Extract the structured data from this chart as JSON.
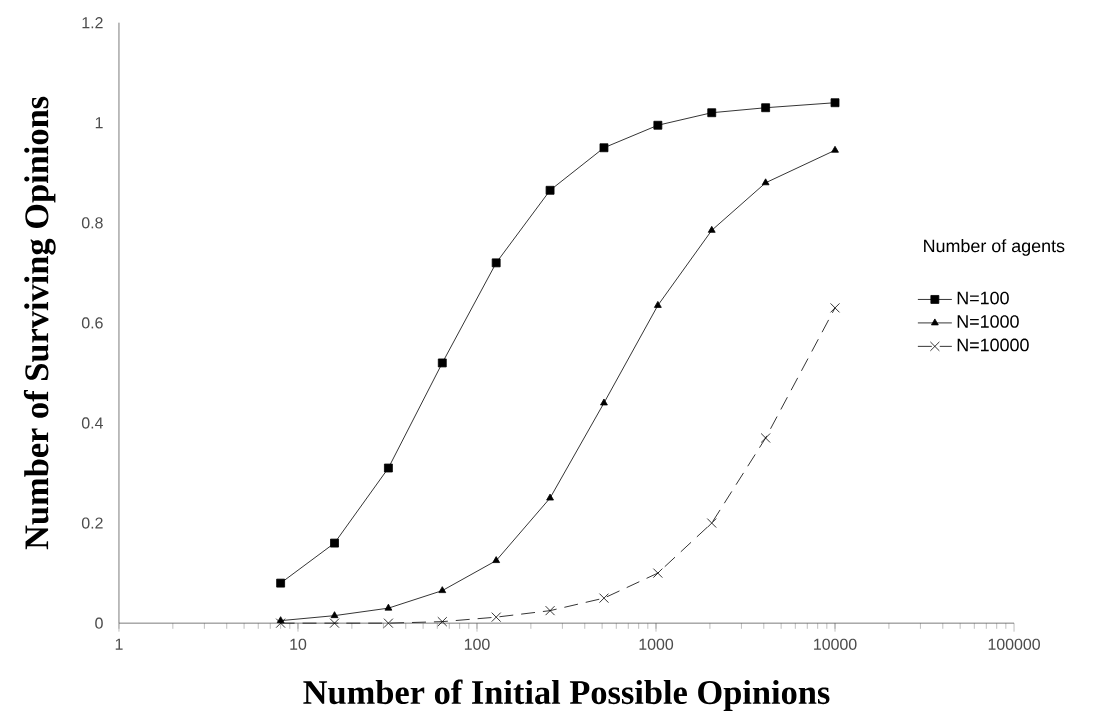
{
  "chart_data": {
    "type": "line",
    "xlabel": "Number of Initial Possible Opinions",
    "ylabel": "Number of Surviving Opinions",
    "legend_title": "Number of agents",
    "x": [
      8,
      16,
      32,
      64,
      128,
      256,
      512,
      1024,
      2048,
      4096,
      10000
    ],
    "series": [
      {
        "name": "N=100",
        "color": "#000000",
        "marker": "square",
        "line_style": "solid",
        "values": [
          0.08,
          0.16,
          0.31,
          0.52,
          0.72,
          0.865,
          0.95,
          0.995,
          1.02,
          1.03,
          1.04
        ]
      },
      {
        "name": "N=1000",
        "color": "#000000",
        "marker": "triangle",
        "line_style": "solid",
        "values": [
          0.005,
          0.015,
          0.03,
          0.065,
          0.125,
          0.25,
          0.44,
          0.635,
          0.785,
          0.88,
          0.945
        ]
      },
      {
        "name": "N=10000",
        "color": "#000000",
        "marker": "cross",
        "line_style": "dashed",
        "values": [
          0,
          0,
          0,
          0.003,
          0.012,
          0.025,
          0.05,
          0.1,
          0.2,
          0.37,
          0.63
        ]
      }
    ],
    "log": "x",
    "xlim": [
      1,
      100000
    ],
    "xticks": [
      1,
      10,
      100,
      1000,
      10000,
      100000
    ],
    "ylim": [
      0,
      1.2
    ],
    "yticks": [
      0,
      0.2,
      0.4,
      0.6,
      0.8,
      1,
      1.2
    ],
    "grid": false,
    "legend": "right"
  }
}
